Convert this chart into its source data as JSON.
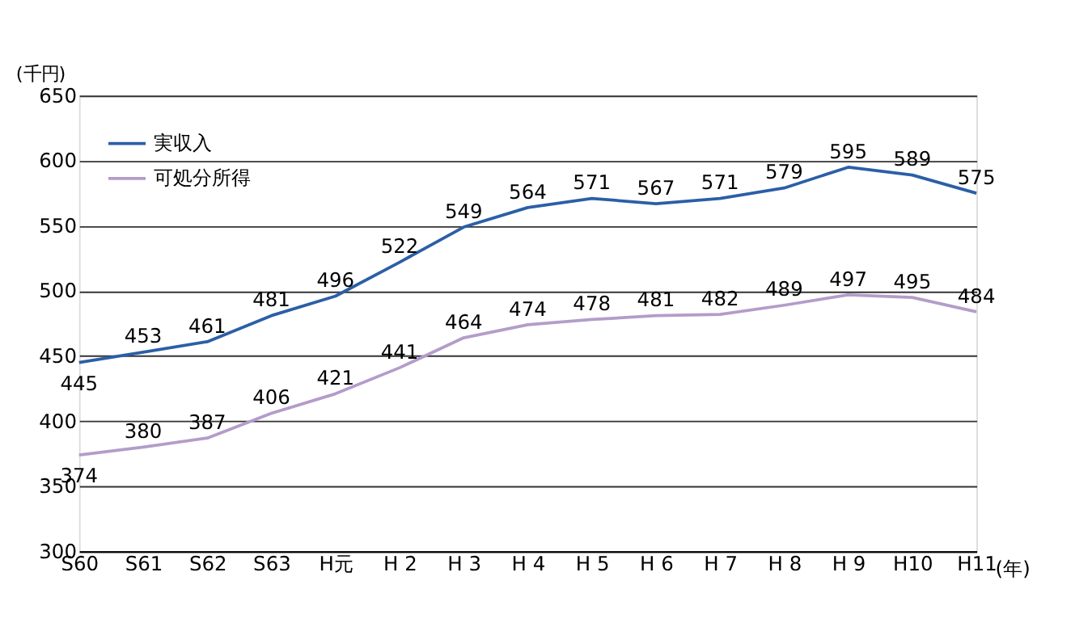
{
  "chart_data": {
    "type": "line",
    "ylabel": "(千円)",
    "xlabel": "(年)",
    "categories": [
      "S60",
      "S61",
      "S62",
      "S63",
      "H元",
      "H 2",
      "H 3",
      "H 4",
      "H 5",
      "H 6",
      "H 7",
      "H 8",
      "H 9",
      "H10",
      "H11"
    ],
    "series": [
      {
        "name": "実収入",
        "color": "#2b5fa6",
        "values": [
          445,
          453,
          461,
          481,
          496,
          522,
          549,
          564,
          571,
          567,
          571,
          579,
          595,
          589,
          575
        ]
      },
      {
        "name": "可処分所得",
        "color": "#b49cc9",
        "values": [
          374,
          380,
          387,
          406,
          421,
          441,
          464,
          474,
          478,
          481,
          482,
          489,
          497,
          495,
          484
        ]
      }
    ],
    "ylim": [
      300,
      650
    ],
    "yticks": [
      300,
      350,
      400,
      450,
      500,
      550,
      600,
      650
    ],
    "grid": "y",
    "legend": "top left",
    "data_labels": true,
    "marker": "none",
    "line_style": "solid"
  }
}
